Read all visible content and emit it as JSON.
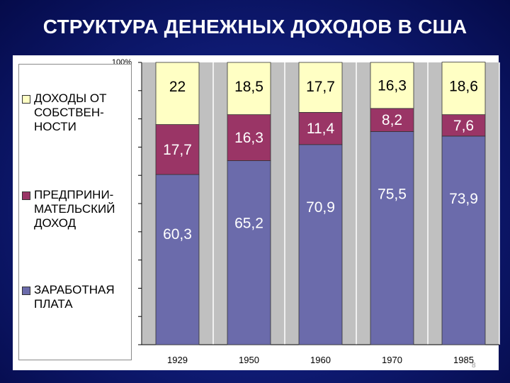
{
  "slide": {
    "title": "СТРУКТУРА ДЕНЕЖНЫХ ДОХОДОВ В США",
    "page_number": "8"
  },
  "chart_data": {
    "type": "bar",
    "stacked": true,
    "categories": [
      "1929",
      "1950",
      "1960",
      "1970",
      "1985"
    ],
    "series": [
      {
        "name": "ЗАРАБОТНАЯ\nПЛАТА",
        "values": [
          60.3,
          65.2,
          70.9,
          75.5,
          73.9
        ],
        "color": "#6b6bab"
      },
      {
        "name": "ПРЕДПРИНИ-\nМАТЕЛЬСКИЙ\nДОХОД",
        "values": [
          17.7,
          16.3,
          11.4,
          8.2,
          7.6
        ],
        "color": "#9a3566"
      },
      {
        "name": "ДОХОДЫ ОТ\nСОБСТВЕН-\nНОСТИ",
        "values": [
          22,
          18.5,
          17.7,
          16.3,
          18.6
        ],
        "color": "#ffffc4"
      }
    ],
    "data_labels": [
      [
        "60,3",
        "65,2",
        "70,9",
        "75,5",
        "73,9"
      ],
      [
        "17,7",
        "16,3",
        "11,4",
        "8,2",
        "7,6"
      ],
      [
        "22",
        "18,5",
        "17,7",
        "16,3",
        "18,6"
      ]
    ],
    "ylim": [
      0,
      100
    ],
    "y_top_tick_label": "100%",
    "grid": "vertical",
    "legend_position": "left",
    "plot_background": "#c0c0c0"
  }
}
